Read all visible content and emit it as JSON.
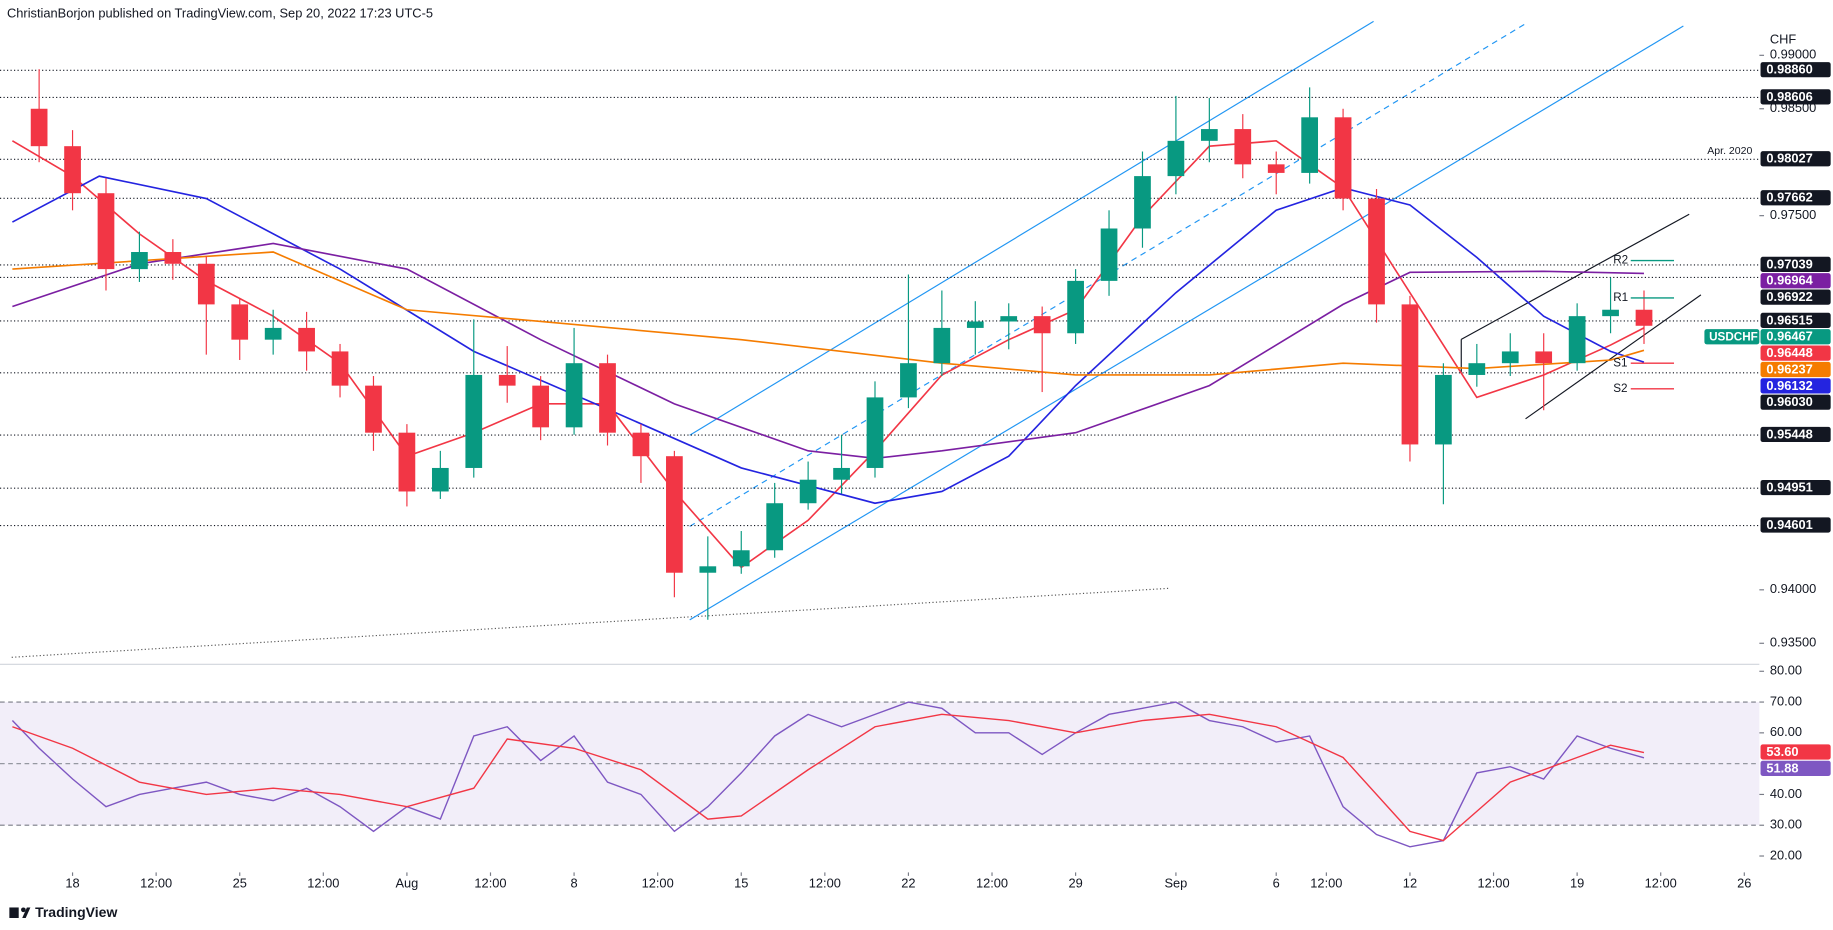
{
  "header": "ChristianBorjon published on TradingView.com, Sep 20, 2022 17:23 UTC-5",
  "footer": "TradingView",
  "chart_data": {
    "type": "candlestick",
    "currency": "CHF",
    "symbol": "USDCHF",
    "last": {
      "value": 0.96467,
      "label": "0.96467"
    },
    "last_color": "#089981",
    "up_color": "#089981",
    "down_color": "#f23645",
    "x": [
      -1,
      0,
      1,
      2,
      3,
      4,
      5,
      6,
      7,
      8,
      9,
      10,
      11,
      12,
      13,
      14,
      15,
      16,
      17,
      18,
      19,
      20,
      21,
      22,
      23,
      24,
      25,
      26,
      27,
      28,
      29,
      30,
      31,
      32,
      33,
      34,
      35,
      36,
      37,
      38,
      39,
      40,
      41,
      42,
      43,
      44,
      45,
      46,
      47
    ],
    "open": [
      0.985,
      0.9815,
      0.9771,
      0.97,
      0.9716,
      0.9705,
      0.9667,
      0.9634,
      0.9645,
      0.9623,
      0.9591,
      0.9547,
      0.9492,
      0.9514,
      0.9601,
      0.9591,
      0.9552,
      0.9612,
      0.9547,
      0.9525,
      0.9416,
      0.9422,
      0.9437,
      0.9481,
      0.9503,
      0.9514,
      0.958,
      0.9612,
      0.9645,
      0.9651,
      0.9656,
      0.964,
      0.9689,
      0.9738,
      0.9787,
      0.982,
      0.9831,
      0.9798,
      0.979,
      0.9842,
      0.9766,
      0.9667,
      0.9536,
      0.9601,
      0.9612,
      0.9623,
      0.9612,
      0.9656,
      0.9662
    ],
    "high": [
      0.9887,
      0.983,
      0.9785,
      0.9735,
      0.9728,
      0.9712,
      0.9672,
      0.9662,
      0.966,
      0.963,
      0.96,
      0.9555,
      0.953,
      0.9653,
      0.9628,
      0.96,
      0.9645,
      0.962,
      0.9555,
      0.953,
      0.945,
      0.9455,
      0.95,
      0.952,
      0.9545,
      0.9595,
      0.9695,
      0.968,
      0.967,
      0.9668,
      0.9665,
      0.97,
      0.9755,
      0.981,
      0.9862,
      0.986,
      0.9845,
      0.981,
      0.987,
      0.985,
      0.9775,
      0.9675,
      0.9612,
      0.963,
      0.964,
      0.964,
      0.9668,
      0.9692,
      0.968
    ],
    "low": [
      0.98,
      0.9755,
      0.968,
      0.9688,
      0.969,
      0.962,
      0.9615,
      0.962,
      0.9605,
      0.958,
      0.953,
      0.9478,
      0.9485,
      0.9505,
      0.9575,
      0.954,
      0.9545,
      0.9535,
      0.95,
      0.9393,
      0.9372,
      0.9415,
      0.943,
      0.9475,
      0.949,
      0.9505,
      0.957,
      0.96,
      0.962,
      0.9625,
      0.9585,
      0.963,
      0.9675,
      0.972,
      0.977,
      0.98,
      0.9785,
      0.977,
      0.978,
      0.9755,
      0.965,
      0.952,
      0.948,
      0.959,
      0.96,
      0.9568,
      0.9605,
      0.964,
      0.963
    ],
    "close": [
      0.9815,
      0.9771,
      0.97,
      0.9716,
      0.9705,
      0.9667,
      0.9634,
      0.9645,
      0.9623,
      0.9591,
      0.9547,
      0.9492,
      0.9514,
      0.9601,
      0.9591,
      0.9552,
      0.9612,
      0.9547,
      0.9525,
      0.9416,
      0.9422,
      0.9437,
      0.9481,
      0.9503,
      0.9514,
      0.958,
      0.9612,
      0.9645,
      0.9651,
      0.9656,
      0.964,
      0.9689,
      0.9738,
      0.9787,
      0.982,
      0.9831,
      0.9798,
      0.979,
      0.9842,
      0.9766,
      0.9667,
      0.9536,
      0.9601,
      0.9612,
      0.9623,
      0.9612,
      0.9656,
      0.9662,
      0.9647
    ],
    "xlim": [
      -2.17,
      50.45
    ],
    "xticks": [
      {
        "value": 0,
        "label": "18"
      },
      {
        "value": 2.5,
        "label": "12:00"
      },
      {
        "value": 5,
        "label": "25"
      },
      {
        "value": 7.5,
        "label": "12:00"
      },
      {
        "value": 10,
        "label": "Aug"
      },
      {
        "value": 12.5,
        "label": "12:00"
      },
      {
        "value": 15,
        "label": "8"
      },
      {
        "value": 17.5,
        "label": "12:00"
      },
      {
        "value": 20,
        "label": "15"
      },
      {
        "value": 22.5,
        "label": "12:00"
      },
      {
        "value": 25,
        "label": "22"
      },
      {
        "value": 27.5,
        "label": "12:00"
      },
      {
        "value": 30,
        "label": "29"
      },
      {
        "value": 33,
        "label": "Sep"
      },
      {
        "value": 36,
        "label": "6"
      },
      {
        "value": 37.5,
        "label": "12:00"
      },
      {
        "value": 40,
        "label": "12"
      },
      {
        "value": 42.5,
        "label": "12:00"
      },
      {
        "value": 45,
        "label": "19"
      },
      {
        "value": 47.5,
        "label": "12:00"
      },
      {
        "value": 50,
        "label": "26"
      }
    ],
    "ylim": [
      0.93336,
      0.99241
    ],
    "yticks": [
      {
        "value": 0.99,
        "label": "0.99000"
      },
      {
        "value": 0.985,
        "label": "0.98500"
      },
      {
        "value": 0.975,
        "label": "0.97500"
      },
      {
        "value": 0.94,
        "label": "0.94000"
      },
      {
        "value": 0.935,
        "label": "0.93500"
      }
    ],
    "levels": [
      {
        "value": 0.9886,
        "label": "0.98860"
      },
      {
        "value": 0.98606,
        "label": "0.98606"
      },
      {
        "value": 0.98027,
        "label": "0.98027",
        "note": "Apr. 2020"
      },
      {
        "value": 0.97662,
        "label": "0.97662"
      },
      {
        "value": 0.97039,
        "label": "0.97039"
      },
      {
        "value": 0.96922,
        "label": "0.96922"
      },
      {
        "value": 0.96515,
        "label": "0.96515"
      },
      {
        "value": 0.9603,
        "label": "0.96030"
      },
      {
        "value": 0.95448,
        "label": "0.95448"
      },
      {
        "value": 0.94951,
        "label": "0.94951"
      },
      {
        "value": 0.94601,
        "label": "0.94601"
      }
    ],
    "averages": [
      {
        "color": "#f23645",
        "x": [
          -1.8,
          0,
          2,
          4,
          6,
          8,
          10,
          12,
          14,
          16,
          18,
          20,
          22,
          24,
          26,
          28,
          30,
          32,
          34,
          36,
          38,
          40,
          42,
          44,
          46,
          47
        ],
        "values": [
          0.982,
          0.9787,
          0.9733,
          0.9689,
          0.9656,
          0.9612,
          0.9525,
          0.9547,
          0.9574,
          0.9574,
          0.9492,
          0.9421,
          0.9465,
          0.953,
          0.9601,
          0.9634,
          0.9662,
          0.9749,
          0.9815,
          0.982,
          0.9776,
          0.9678,
          0.958,
          0.9601,
          0.9629,
          0.9645
        ],
        "badge": {
          "value": 0.96448,
          "label": "0.96448"
        }
      },
      {
        "color": "#2424e0",
        "x": [
          -1.8,
          0.8,
          4,
          8,
          12,
          16,
          20,
          24,
          26,
          28,
          30,
          33,
          36,
          38,
          40,
          42,
          44,
          46,
          47
        ],
        "values": [
          0.9744,
          0.9787,
          0.9766,
          0.97,
          0.9623,
          0.9569,
          0.9514,
          0.9481,
          0.9492,
          0.9525,
          0.9591,
          0.9678,
          0.9755,
          0.9776,
          0.976,
          0.9711,
          0.9656,
          0.9623,
          0.9613
        ],
        "badge": {
          "value": 0.96132,
          "label": "0.96132"
        }
      },
      {
        "color": "#7b1fa2",
        "x": [
          -1.8,
          2,
          6,
          10,
          14,
          18,
          22,
          24,
          26,
          30,
          34,
          38,
          40,
          44,
          47
        ],
        "values": [
          0.9665,
          0.9705,
          0.9724,
          0.97,
          0.9634,
          0.9574,
          0.953,
          0.9523,
          0.953,
          0.9547,
          0.9591,
          0.9667,
          0.9697,
          0.9698,
          0.9696
        ],
        "badge": {
          "value": 0.96964,
          "label": "0.96964"
        }
      },
      {
        "color": "#f57c00",
        "x": [
          -1.8,
          6,
          10,
          14,
          20,
          26,
          30,
          34,
          38,
          42,
          46,
          47
        ],
        "values": [
          0.97,
          0.9716,
          0.9662,
          0.9651,
          0.9634,
          0.9612,
          0.9601,
          0.9601,
          0.9612,
          0.9607,
          0.9615,
          0.9624
        ],
        "badge": {
          "value": 0.96237,
          "label": "0.96237"
        }
      }
    ],
    "pivots": [
      {
        "label": "R2",
        "value": 0.9708,
        "color": "#089981"
      },
      {
        "label": "R1",
        "value": 0.9673,
        "color": "#089981"
      },
      {
        "label": "S1",
        "value": 0.9612,
        "color": "#f23645"
      },
      {
        "label": "S2",
        "value": 0.9588,
        "color": "#f23645"
      }
    ],
    "rsi": {
      "ylim": [
        15.06,
        81.5
      ],
      "yticks": [
        {
          "value": 80,
          "label": "80.00"
        },
        {
          "value": 70,
          "label": "70.00"
        },
        {
          "value": 60,
          "label": "60.00"
        },
        {
          "value": 40,
          "label": "40.00"
        },
        {
          "value": 30,
          "label": "30.00"
        },
        {
          "value": 20,
          "label": "20.00"
        }
      ],
      "band": [
        30,
        70
      ],
      "mid": 50,
      "lines": [
        {
          "color": "#7e57c2",
          "x": [
            -1.8,
            -1,
            0,
            1,
            2,
            3,
            4,
            5,
            6,
            7,
            8,
            9,
            10,
            11,
            12,
            13,
            14,
            15,
            16,
            17,
            18,
            19,
            20,
            21,
            22,
            23,
            24,
            25,
            26,
            27,
            28,
            29,
            30,
            31,
            32,
            33,
            34,
            35,
            36,
            37,
            38,
            39,
            40,
            41,
            42,
            43,
            44,
            45,
            46,
            47
          ],
          "values": [
            64,
            55,
            45,
            36,
            40,
            42,
            44,
            40,
            38,
            42,
            36,
            28,
            36,
            32,
            59,
            62,
            51,
            59,
            44,
            40,
            28,
            36,
            47,
            59,
            66,
            62,
            66,
            70,
            68,
            60,
            60,
            53,
            60,
            66,
            68,
            70,
            64,
            62,
            57,
            59,
            36,
            27,
            23,
            25,
            47,
            49,
            45,
            59,
            55,
            51.88
          ],
          "badge": {
            "value": 51.88,
            "label": "51.88"
          }
        },
        {
          "color": "#f23645",
          "x": [
            -1.8,
            0,
            2,
            4,
            6,
            8,
            10,
            12,
            13,
            15,
            17,
            19,
            20,
            22,
            24,
            26,
            28,
            30,
            32,
            34,
            36,
            38,
            40,
            41,
            43,
            45,
            46,
            47
          ],
          "values": [
            62,
            55,
            44,
            40,
            42,
            40,
            36,
            42,
            58,
            55,
            48,
            32,
            33,
            48,
            62,
            66,
            64,
            60,
            64,
            66,
            62,
            52,
            28,
            25,
            44,
            52,
            56,
            53.6
          ],
          "badge": {
            "value": 53.6,
            "label": "53.60"
          }
        }
      ]
    }
  }
}
